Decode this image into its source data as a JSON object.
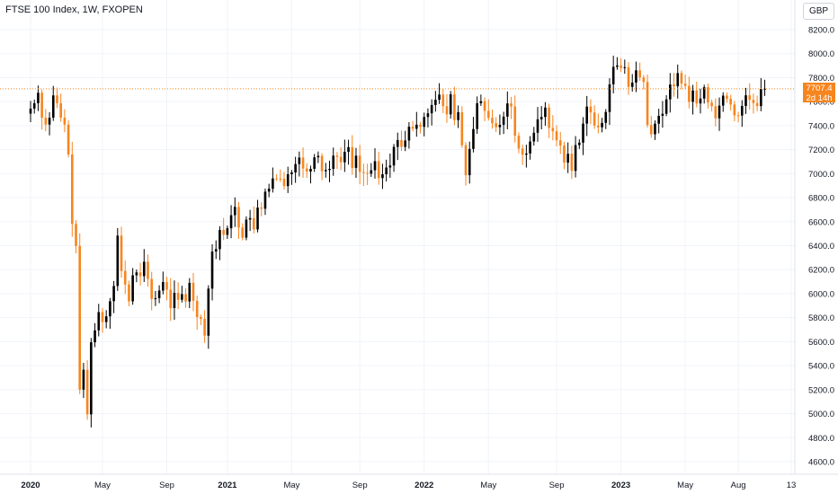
{
  "header": {
    "title": "FTSE 100 Index, 1W, FXOPEN"
  },
  "currency_label": "GBP",
  "last_price": {
    "value_label": "7707.4",
    "countdown": "2d 14h",
    "value": 7707.4
  },
  "colors": {
    "up": "#000000",
    "down": "#f7851e",
    "grid": "#f0f3fa",
    "price_line": "#f7851e"
  },
  "chart_data": {
    "type": "candlestick",
    "title": "FTSE 100 Index, 1W, FXOPEN",
    "ylim": [
      4500,
      8300
    ],
    "y_ticks": [
      "8200.0",
      "8000.0",
      "7800.0",
      "7600.0",
      "7400.0",
      "7200.0",
      "7000.0",
      "6800.0",
      "6600.0",
      "6400.0",
      "6200.0",
      "6000.0",
      "5800.0",
      "5600.0",
      "5400.0",
      "5200.0",
      "5000.0",
      "4800.0",
      "4600.0"
    ],
    "x_ticks": [
      {
        "label": "2020",
        "week": 0,
        "bold": true
      },
      {
        "label": "May",
        "week": 19,
        "bold": false
      },
      {
        "label": "Sep",
        "week": 36,
        "bold": false
      },
      {
        "label": "2021",
        "week": 52,
        "bold": true
      },
      {
        "label": "May",
        "week": 69,
        "bold": false
      },
      {
        "label": "Sep",
        "week": 87,
        "bold": false
      },
      {
        "label": "2022",
        "week": 104,
        "bold": true
      },
      {
        "label": "May",
        "week": 121,
        "bold": false
      },
      {
        "label": "Sep",
        "week": 139,
        "bold": false
      },
      {
        "label": "2023",
        "week": 156,
        "bold": true
      },
      {
        "label": "May",
        "week": 173,
        "bold": false
      },
      {
        "label": "Aug",
        "week": 187,
        "bold": false
      },
      {
        "label": "13",
        "week": 201,
        "bold": false
      }
    ],
    "x_range": [
      -4,
      208
    ],
    "closes": [
      7542,
      7587,
      7674,
      7466,
      7409,
      7466,
      7652,
      7587,
      7466,
      7409,
      7160,
      6581,
      6397,
      5200,
      5366,
      4994,
      5595,
      5694,
      5846,
      5763,
      5811,
      5937,
      6064,
      6484,
      6189,
      6076,
      5936,
      6153,
      6177,
      6146,
      6266,
      6123,
      5956,
      5962,
      6026,
      6097,
      6033,
      5880,
      6007,
      5949,
      5996,
      5935,
      6090,
      5940,
      5805,
      5790,
      5650,
      6042,
      6351,
      6371,
      6531,
      6490,
      6545,
      6654,
      6723,
      6551,
      6467,
      6617,
      6630,
      6535,
      6717,
      6708,
      6850,
      6875,
      6960,
      6959,
      6958,
      6896,
      6995,
      7010,
      7080,
      7134,
      7043,
      7018,
      7040,
      7136,
      7148,
      7020,
      7030,
      7040,
      7150,
      7140,
      7095,
      7182,
      7221,
      7048,
      7150,
      7014,
      7006,
      7000,
      7028,
      7104,
      6963,
      6995,
      7051,
      7068,
      7223,
      7280,
      7223,
      7276,
      7391,
      7374,
      7408,
      7390,
      7472,
      7503,
      7572,
      7616,
      7659,
      7562,
      7494,
      7661,
      7446,
      7512,
      7237,
      6987,
      7206,
      7372,
      7587,
      7604,
      7523,
      7465,
      7420,
      7387,
      7407,
      7475,
      7585,
      7560,
      7316,
      7209,
      7158,
      7168,
      7268,
      7341,
      7453,
      7472,
      7551,
      7381,
      7353,
      7278,
      7234,
      7092,
      7166,
      7023,
      7238,
      7258,
      7417,
      7559,
      7510,
      7401,
      7386,
      7423,
      7514,
      7744,
      7890,
      7902,
      7880,
      7887,
      7723,
      7759,
      7861,
      7802,
      7764,
      7405,
      7328,
      7416,
      7482,
      7499,
      7619,
      7743,
      7728,
      7838,
      7750,
      7731,
      7598,
      7693,
      7585,
      7626,
      7720,
      7592,
      7562,
      7461,
      7567,
      7650,
      7624,
      7576,
      7486,
      7484,
      7564,
      7653,
      7615,
      7588,
      7563,
      7706,
      7707
    ],
    "last_value": 7707.4
  }
}
